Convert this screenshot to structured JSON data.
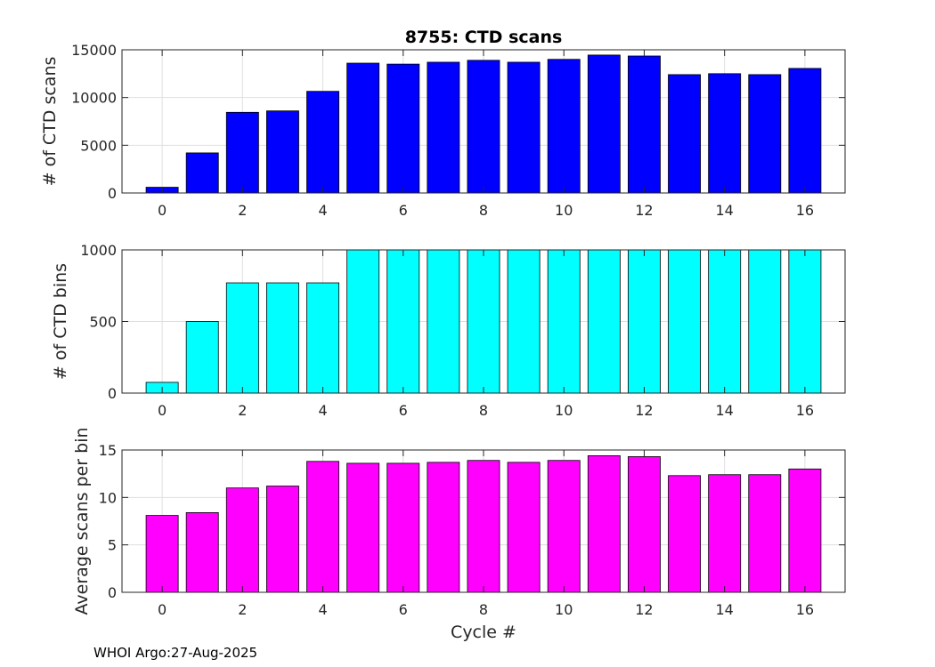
{
  "figure": {
    "title": "8755: CTD scans",
    "xlabel": "Cycle #",
    "footer": "WHOI Argo:27-Aug-2025"
  },
  "chart_data": [
    {
      "type": "bar",
      "name": "ctd-scans",
      "title": "8755: CTD scans",
      "xlabel": "",
      "ylabel": "# of CTD scans",
      "x": [
        0,
        1,
        2,
        3,
        4,
        5,
        6,
        7,
        8,
        9,
        10,
        11,
        12,
        13,
        14,
        15,
        16
      ],
      "values": [
        600,
        4200,
        8450,
        8600,
        10650,
        13600,
        13500,
        13700,
        13900,
        13700,
        14000,
        14450,
        14350,
        12400,
        12500,
        12400,
        13050
      ],
      "xlim": [
        -1,
        17
      ],
      "ylim": [
        0,
        15000
      ],
      "xticks": [
        0,
        2,
        4,
        6,
        8,
        10,
        12,
        14,
        16
      ],
      "yticks": [
        0,
        5000,
        10000,
        15000
      ],
      "color": "#0000ff",
      "grid": true
    },
    {
      "type": "bar",
      "name": "ctd-bins",
      "title": "",
      "xlabel": "",
      "ylabel": "# of CTD bins",
      "x": [
        0,
        1,
        2,
        3,
        4,
        5,
        6,
        7,
        8,
        9,
        10,
        11,
        12,
        13,
        14,
        15,
        16
      ],
      "values": [
        75,
        500,
        770,
        770,
        770,
        1000,
        1000,
        1000,
        1000,
        1000,
        1000,
        1000,
        1000,
        1000,
        1000,
        1000,
        1000
      ],
      "xlim": [
        -1,
        17
      ],
      "ylim": [
        0,
        1000
      ],
      "xticks": [
        0,
        2,
        4,
        6,
        8,
        10,
        12,
        14,
        16
      ],
      "yticks": [
        0,
        500,
        1000
      ],
      "color": "#00ffff",
      "grid": true
    },
    {
      "type": "bar",
      "name": "avg-scans-per-bin",
      "title": "",
      "xlabel": "Cycle #",
      "ylabel": "Average scans per bin",
      "x": [
        0,
        1,
        2,
        3,
        4,
        5,
        6,
        7,
        8,
        9,
        10,
        11,
        12,
        13,
        14,
        15,
        16
      ],
      "values": [
        8.1,
        8.4,
        11.0,
        11.2,
        13.8,
        13.6,
        13.6,
        13.7,
        13.9,
        13.7,
        13.9,
        14.4,
        14.3,
        12.3,
        12.4,
        12.4,
        13.0
      ],
      "xlim": [
        -1,
        17
      ],
      "ylim": [
        0,
        15
      ],
      "xticks": [
        0,
        2,
        4,
        6,
        8,
        10,
        12,
        14,
        16
      ],
      "yticks": [
        0,
        5,
        10,
        15
      ],
      "color": "#ff00ff",
      "grid": true
    }
  ]
}
